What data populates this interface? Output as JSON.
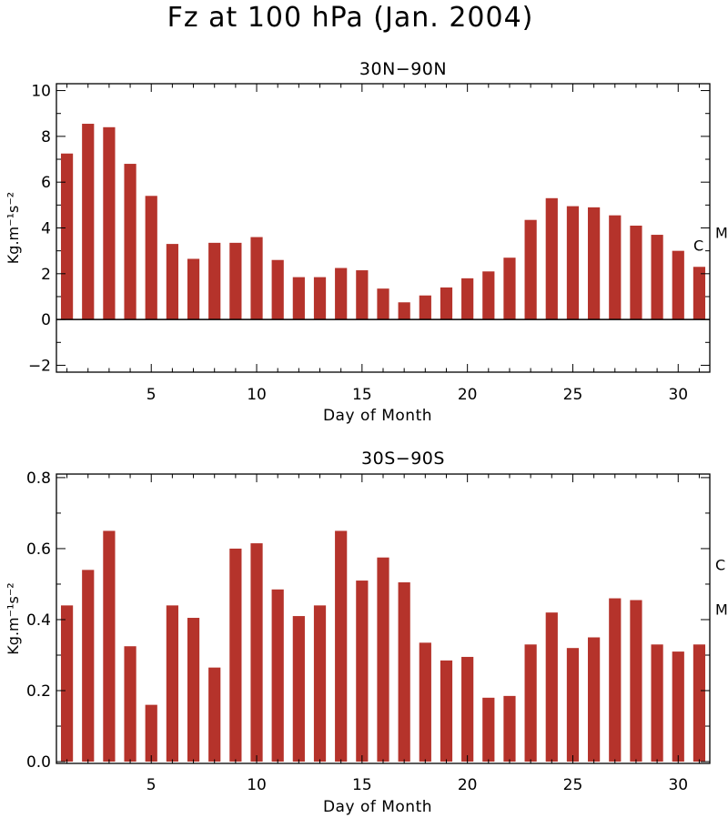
{
  "page": {
    "title": "Fz at 100 hPa (Jan. 2004)"
  },
  "chart_data": [
    {
      "type": "bar",
      "title": "30N−90N",
      "xlabel": "Day of Month",
      "ylabel": "Kg.m⁻¹s⁻²",
      "xlim": [
        0.5,
        31.5
      ],
      "ylim": [
        -2.3,
        10.3
      ],
      "xticks": [
        5,
        10,
        15,
        20,
        25,
        30
      ],
      "yticks": [
        -2,
        0,
        2,
        4,
        6,
        8,
        10
      ],
      "ytick_labels": [
        "−2",
        "0",
        "2",
        "4",
        "6",
        "8",
        "10"
      ],
      "zero_line": true,
      "bar_color": "#b5332b",
      "x": [
        1,
        2,
        3,
        4,
        5,
        6,
        7,
        8,
        9,
        10,
        11,
        12,
        13,
        14,
        15,
        16,
        17,
        18,
        19,
        20,
        21,
        22,
        23,
        24,
        25,
        26,
        27,
        28,
        29,
        30,
        31
      ],
      "values": [
        7.25,
        8.55,
        8.4,
        6.8,
        5.4,
        3.3,
        2.65,
        3.35,
        3.35,
        3.6,
        2.6,
        1.85,
        1.85,
        2.25,
        2.15,
        1.35,
        0.75,
        1.05,
        1.4,
        1.8,
        2.1,
        2.7,
        4.35,
        5.3,
        4.95,
        4.9,
        4.55,
        4.1,
        3.7,
        3.0,
        2.3
      ],
      "markers": [
        {
          "label": "M",
          "value": 3.8
        },
        {
          "label": "C",
          "value": 3.25
        }
      ]
    },
    {
      "type": "bar",
      "title": "30S−90S",
      "xlabel": "Day of Month",
      "ylabel": "Kg.m⁻¹s⁻²",
      "xlim": [
        0.5,
        31.5
      ],
      "ylim": [
        -0.005,
        0.81
      ],
      "xticks": [
        5,
        10,
        15,
        20,
        25,
        30
      ],
      "yticks": [
        0.0,
        0.2,
        0.4,
        0.6,
        0.8
      ],
      "ytick_labels": [
        "0.0",
        "0.2",
        "0.4",
        "0.6",
        "0.8"
      ],
      "zero_line": false,
      "bar_color": "#b5332b",
      "x": [
        1,
        2,
        3,
        4,
        5,
        6,
        7,
        8,
        9,
        10,
        11,
        12,
        13,
        14,
        15,
        16,
        17,
        18,
        19,
        20,
        21,
        22,
        23,
        24,
        25,
        26,
        27,
        28,
        29,
        30,
        31
      ],
      "values": [
        0.44,
        0.54,
        0.65,
        0.325,
        0.16,
        0.44,
        0.405,
        0.265,
        0.6,
        0.615,
        0.485,
        0.41,
        0.44,
        0.65,
        0.51,
        0.575,
        0.505,
        0.335,
        0.285,
        0.295,
        0.18,
        0.185,
        0.33,
        0.42,
        0.32,
        0.35,
        0.46,
        0.455,
        0.33,
        0.31,
        0.33
      ],
      "markers": [
        {
          "label": "C",
          "value": 0.555
        },
        {
          "label": "M",
          "value": 0.43
        }
      ]
    }
  ]
}
